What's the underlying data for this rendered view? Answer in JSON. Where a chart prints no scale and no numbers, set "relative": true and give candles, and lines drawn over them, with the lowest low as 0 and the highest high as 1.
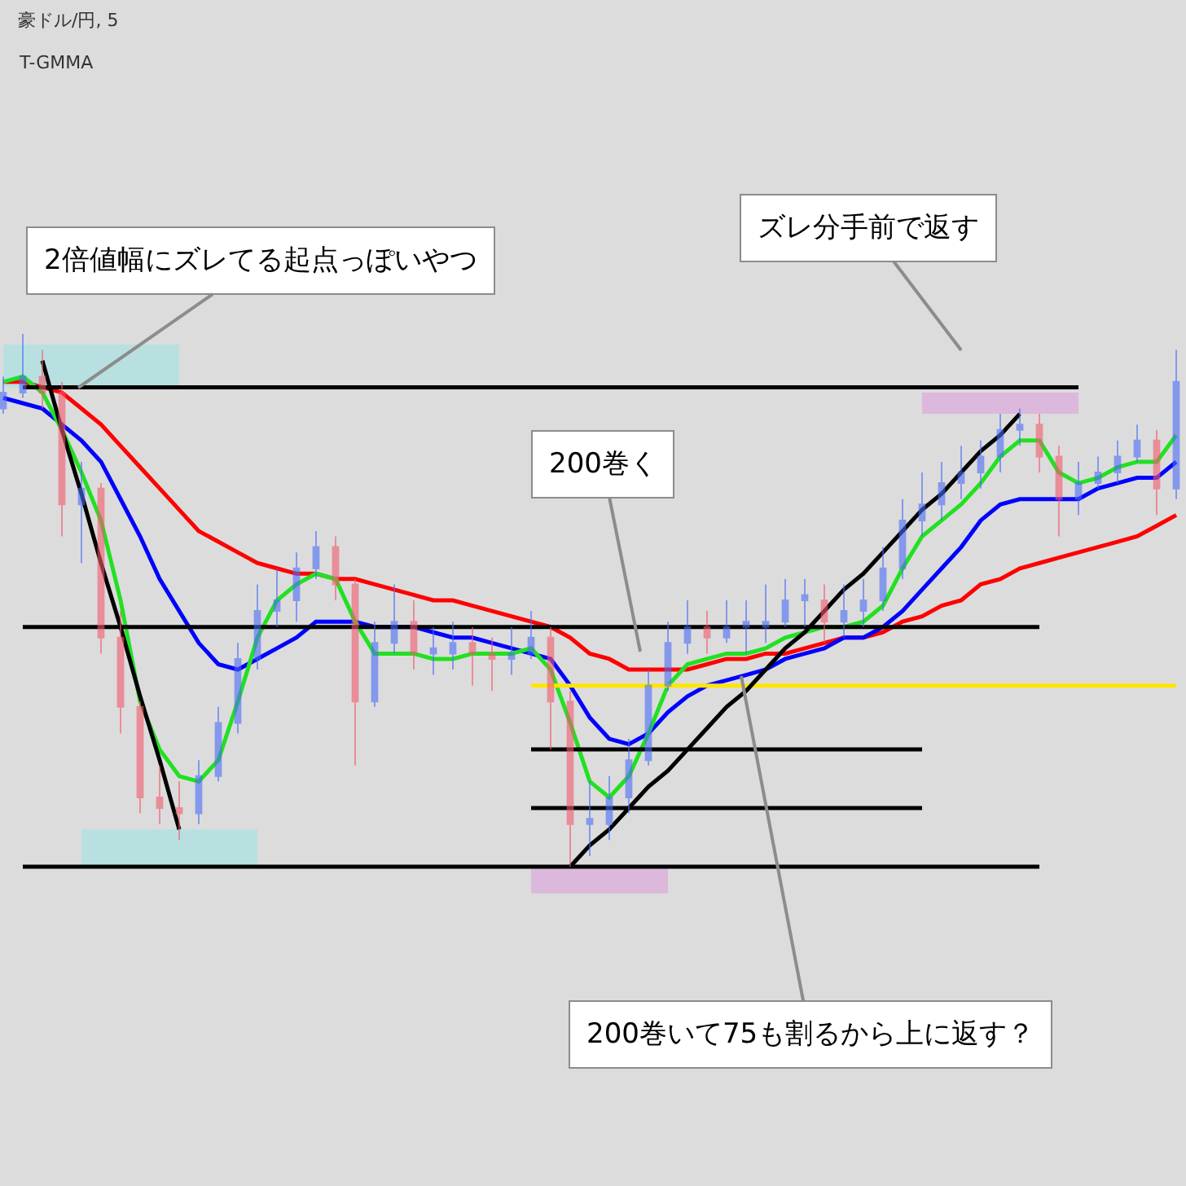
{
  "chart_data": {
    "type": "candlestick",
    "title": "豪ドル/円, 5",
    "subtitle": "T-GMMA",
    "relative": true,
    "categories": [
      null,
      null,
      null,
      null,
      null,
      null,
      null,
      null,
      null,
      null,
      null,
      null,
      null,
      null,
      null,
      null,
      null,
      null,
      null,
      null,
      null,
      null,
      null,
      null,
      null,
      null,
      null,
      null,
      null,
      null,
      null,
      null,
      null,
      null,
      null,
      null,
      null,
      null,
      null,
      null,
      null,
      null,
      null,
      null,
      null,
      null,
      null,
      null,
      null,
      null,
      null,
      null,
      null,
      null,
      null,
      null,
      null,
      null,
      null,
      null,
      null
    ],
    "ohlc": [
      [
        0.86,
        0.92,
        0.85,
        0.89
      ],
      [
        0.89,
        1.0,
        0.88,
        0.92
      ],
      [
        0.92,
        0.97,
        0.86,
        0.89
      ],
      [
        0.89,
        0.91,
        0.62,
        0.68
      ],
      [
        0.68,
        0.76,
        0.57,
        0.71
      ],
      [
        0.71,
        0.72,
        0.4,
        0.43
      ],
      [
        0.43,
        0.48,
        0.25,
        0.3
      ],
      [
        0.3,
        0.31,
        0.1,
        0.13
      ],
      [
        0.13,
        0.19,
        0.08,
        0.11
      ],
      [
        0.11,
        0.16,
        0.05,
        0.1
      ],
      [
        0.1,
        0.2,
        0.08,
        0.17
      ],
      [
        0.17,
        0.3,
        0.16,
        0.27
      ],
      [
        0.27,
        0.42,
        0.25,
        0.39
      ],
      [
        0.39,
        0.53,
        0.37,
        0.48
      ],
      [
        0.48,
        0.56,
        0.45,
        0.5
      ],
      [
        0.5,
        0.59,
        0.46,
        0.56
      ],
      [
        0.56,
        0.63,
        0.54,
        0.6
      ],
      [
        0.6,
        0.62,
        0.5,
        0.53
      ],
      [
        0.53,
        0.54,
        0.19,
        0.31
      ],
      [
        0.31,
        0.46,
        0.3,
        0.42
      ],
      [
        0.42,
        0.53,
        0.4,
        0.46
      ],
      [
        0.46,
        0.5,
        0.37,
        0.4
      ],
      [
        0.4,
        0.45,
        0.36,
        0.41
      ],
      [
        0.4,
        0.46,
        0.37,
        0.42
      ],
      [
        0.42,
        0.45,
        0.34,
        0.4
      ],
      [
        0.4,
        0.43,
        0.33,
        0.39
      ],
      [
        0.39,
        0.45,
        0.36,
        0.4
      ],
      [
        0.4,
        0.48,
        0.39,
        0.43
      ],
      [
        0.43,
        0.45,
        0.22,
        0.31
      ],
      [
        0.31,
        0.33,
        0.0,
        0.08
      ],
      [
        0.08,
        0.16,
        0.02,
        0.09
      ],
      [
        0.08,
        0.17,
        0.05,
        0.13
      ],
      [
        0.13,
        0.24,
        0.1,
        0.2
      ],
      [
        0.2,
        0.37,
        0.19,
        0.34
      ],
      [
        0.34,
        0.46,
        0.33,
        0.42
      ],
      [
        0.42,
        0.5,
        0.4,
        0.45
      ],
      [
        0.45,
        0.48,
        0.4,
        0.43
      ],
      [
        0.43,
        0.5,
        0.42,
        0.45
      ],
      [
        0.45,
        0.5,
        0.4,
        0.46
      ],
      [
        0.45,
        0.53,
        0.42,
        0.46
      ],
      [
        0.46,
        0.54,
        0.45,
        0.5
      ],
      [
        0.5,
        0.54,
        0.45,
        0.51
      ],
      [
        0.5,
        0.53,
        0.42,
        0.46
      ],
      [
        0.46,
        0.53,
        0.43,
        0.48
      ],
      [
        0.48,
        0.54,
        0.45,
        0.5
      ],
      [
        0.5,
        0.6,
        0.48,
        0.56
      ],
      [
        0.56,
        0.69,
        0.54,
        0.65
      ],
      [
        0.65,
        0.74,
        0.62,
        0.68
      ],
      [
        0.68,
        0.76,
        0.65,
        0.72
      ],
      [
        0.72,
        0.79,
        0.69,
        0.74
      ],
      [
        0.74,
        0.8,
        0.71,
        0.77
      ],
      [
        0.77,
        0.85,
        0.74,
        0.82
      ],
      [
        0.82,
        0.86,
        0.79,
        0.83
      ],
      [
        0.83,
        0.85,
        0.74,
        0.77
      ],
      [
        0.77,
        0.79,
        0.62,
        0.69
      ],
      [
        0.69,
        0.76,
        0.66,
        0.72
      ],
      [
        0.72,
        0.77,
        0.71,
        0.74
      ],
      [
        0.74,
        0.8,
        0.72,
        0.77
      ],
      [
        0.77,
        0.83,
        0.76,
        0.8
      ],
      [
        0.8,
        0.82,
        0.66,
        0.71
      ],
      [
        0.71,
        0.97,
        0.69,
        0.91
      ]
    ],
    "colors": [
      "#4a6cf7",
      "#4a6cf7",
      "#f25a6e",
      "#f25a6e",
      "#4a6cf7",
      "#f25a6e",
      "#f25a6e",
      "#f25a6e",
      "#f25a6e",
      "#f25a6e",
      "#4a6cf7",
      "#4a6cf7",
      "#4a6cf7",
      "#4a6cf7",
      "#4a6cf7",
      "#4a6cf7",
      "#4a6cf7",
      "#f25a6e",
      "#f25a6e",
      "#4a6cf7",
      "#4a6cf7",
      "#f25a6e",
      "#4a6cf7",
      "#4a6cf7",
      "#f25a6e",
      "#f25a6e",
      "#4a6cf7",
      "#4a6cf7",
      "#f25a6e",
      "#f25a6e",
      "#4a6cf7",
      "#4a6cf7",
      "#4a6cf7",
      "#4a6cf7",
      "#4a6cf7",
      "#4a6cf7",
      "#f25a6e",
      "#4a6cf7",
      "#4a6cf7",
      "#4a6cf7",
      "#4a6cf7",
      "#4a6cf7",
      "#f25a6e",
      "#4a6cf7",
      "#4a6cf7",
      "#4a6cf7",
      "#4a6cf7",
      "#4a6cf7",
      "#4a6cf7",
      "#4a6cf7",
      "#4a6cf7",
      "#4a6cf7",
      "#4a6cf7",
      "#f25a6e",
      "#f25a6e",
      "#4a6cf7",
      "#4a6cf7",
      "#4a6cf7",
      "#4a6cf7",
      "#f25a6e",
      "#4a6cf7"
    ],
    "series": [
      {
        "type": "area",
        "color": "#b9e0e0",
        "values": [
          null,
          null,
          null,
          null,
          null,
          null,
          null,
          null,
          null,
          null,
          null,
          null,
          null,
          null,
          null,
          null,
          null,
          null,
          null,
          null,
          null,
          null,
          null,
          null,
          null,
          null,
          null,
          null,
          null,
          null,
          null,
          null,
          null,
          null,
          null,
          null,
          null,
          null,
          null,
          null,
          null,
          null,
          null,
          null,
          null,
          null,
          null,
          null,
          null,
          null,
          null,
          null,
          null,
          null,
          null,
          null,
          null,
          null,
          null,
          null,
          null
        ],
        "lower": [
          0.9,
          0.9,
          0.9,
          0.9,
          0.9,
          0.9,
          0.9,
          0.9,
          0.9,
          0.9,
          null,
          null,
          null,
          null,
          null,
          null,
          null,
          null,
          null,
          null,
          null,
          null,
          null,
          null,
          null,
          null,
          null,
          null,
          null,
          null,
          null,
          null,
          null,
          null,
          null,
          null,
          null,
          null,
          null,
          null,
          null,
          null,
          null,
          null,
          null,
          null,
          null,
          null,
          null,
          null,
          null,
          null,
          null,
          null,
          null,
          null,
          null,
          null,
          null,
          null,
          null
        ],
        "upper": [
          0.98,
          0.98,
          0.98,
          0.98,
          0.98,
          0.98,
          0.98,
          0.98,
          0.98,
          0.98,
          null,
          null,
          null,
          null,
          null,
          null,
          null,
          null,
          null,
          null,
          null,
          null,
          null,
          null,
          null,
          null,
          null,
          null,
          null,
          null,
          null,
          null,
          null,
          null,
          null,
          null,
          null,
          null,
          null,
          null,
          null,
          null,
          null,
          null,
          null,
          null,
          null,
          null,
          null,
          null,
          null,
          null,
          null,
          null,
          null,
          null,
          null,
          null,
          null,
          null,
          null
        ]
      },
      {
        "type": "area",
        "color": "#b9e0e0",
        "values": [
          null,
          null,
          null,
          null,
          null,
          null,
          null,
          null,
          null,
          null,
          null,
          null,
          null,
          null,
          null,
          null,
          null,
          null,
          null,
          null,
          null,
          null,
          null,
          null,
          null,
          null,
          null,
          null,
          null,
          null,
          null,
          null,
          null,
          null,
          null,
          null,
          null,
          null,
          null,
          null,
          null,
          null,
          null,
          null,
          null,
          null,
          null,
          null,
          null,
          null,
          null,
          null,
          null,
          null,
          null,
          null,
          null,
          null,
          null,
          null,
          null
        ],
        "lower": [
          null,
          null,
          null,
          null,
          0.0,
          0.0,
          0.0,
          0.0,
          0.0,
          0.0,
          0.0,
          0.0,
          0.0,
          0.0,
          null,
          null,
          null,
          null,
          null,
          null,
          null,
          null,
          null,
          null,
          null,
          null,
          null,
          null,
          null,
          null,
          null,
          null,
          null,
          null,
          null,
          null,
          null,
          null,
          null,
          null,
          null,
          null,
          null,
          null,
          null,
          null,
          null,
          null,
          null,
          null,
          null,
          null,
          null,
          null,
          null,
          null,
          null,
          null,
          null,
          null,
          null
        ],
        "upper": [
          null,
          null,
          null,
          null,
          0.07,
          0.07,
          0.07,
          0.07,
          0.07,
          0.07,
          0.07,
          0.07,
          0.07,
          0.07,
          null,
          null,
          null,
          null,
          null,
          null,
          null,
          null,
          null,
          null,
          null,
          null,
          null,
          null,
          null,
          null,
          null,
          null,
          null,
          null,
          null,
          null,
          null,
          null,
          null,
          null,
          null,
          null,
          null,
          null,
          null,
          null,
          null,
          null,
          null,
          null,
          null,
          null,
          null,
          null,
          null,
          null,
          null,
          null,
          null,
          null,
          null
        ]
      },
      {
        "type": "area",
        "color": "#dcb8dc",
        "values": [
          null,
          null,
          null,
          null,
          null,
          null,
          null,
          null,
          null,
          null,
          null,
          null,
          null,
          null,
          null,
          null,
          null,
          null,
          null,
          null,
          null,
          null,
          null,
          null,
          null,
          null,
          null,
          null,
          null,
          null,
          null,
          null,
          null,
          null,
          null,
          null,
          null,
          null,
          null,
          null,
          null,
          null,
          null,
          null,
          null,
          null,
          null,
          null,
          null,
          null,
          null,
          null,
          null,
          null,
          null,
          null,
          null,
          null,
          null,
          null,
          null
        ],
        "lower": [
          null,
          null,
          null,
          null,
          null,
          null,
          null,
          null,
          null,
          null,
          null,
          null,
          null,
          null,
          null,
          null,
          null,
          null,
          null,
          null,
          null,
          null,
          null,
          null,
          null,
          null,
          null,
          null,
          null,
          null,
          null,
          null,
          null,
          null,
          null,
          null,
          null,
          null,
          null,
          null,
          null,
          null,
          null,
          null,
          null,
          null,
          null,
          0.85,
          0.85,
          0.85,
          0.85,
          0.85,
          0.85,
          0.85,
          0.85,
          0.85,
          null,
          null,
          null,
          null,
          null
        ],
        "upper": [
          null,
          null,
          null,
          null,
          null,
          null,
          null,
          null,
          null,
          null,
          null,
          null,
          null,
          null,
          null,
          null,
          null,
          null,
          null,
          null,
          null,
          null,
          null,
          null,
          null,
          null,
          null,
          null,
          null,
          null,
          null,
          null,
          null,
          null,
          null,
          null,
          null,
          null,
          null,
          null,
          null,
          null,
          null,
          null,
          null,
          null,
          null,
          0.89,
          0.89,
          0.89,
          0.89,
          0.89,
          0.89,
          0.89,
          0.89,
          0.89,
          null,
          null,
          null,
          null,
          null
        ]
      },
      {
        "type": "area",
        "color": "#dcb8dc",
        "values": [
          null,
          null,
          null,
          null,
          null,
          null,
          null,
          null,
          null,
          null,
          null,
          null,
          null,
          null,
          null,
          null,
          null,
          null,
          null,
          null,
          null,
          null,
          null,
          null,
          null,
          null,
          null,
          null,
          null,
          null,
          null,
          null,
          null,
          null,
          null,
          null,
          null,
          null,
          null,
          null,
          null,
          null,
          null,
          null,
          null,
          null,
          null,
          null,
          null,
          null,
          null,
          null,
          null,
          null,
          null,
          null,
          null,
          null,
          null,
          null,
          null
        ],
        "lower": [
          null,
          null,
          null,
          null,
          null,
          null,
          null,
          null,
          null,
          null,
          null,
          null,
          null,
          null,
          null,
          null,
          null,
          null,
          null,
          null,
          null,
          null,
          null,
          null,
          null,
          null,
          null,
          -0.05,
          -0.05,
          -0.05,
          -0.05,
          -0.05,
          -0.05,
          -0.05,
          -0.05,
          null,
          null,
          null,
          null,
          null,
          null,
          null,
          null,
          null,
          null,
          null,
          null,
          null,
          null,
          null,
          null,
          null,
          null,
          null,
          null,
          null,
          null,
          null,
          null,
          null,
          null
        ],
        "upper": [
          null,
          null,
          null,
          null,
          null,
          null,
          null,
          null,
          null,
          null,
          null,
          null,
          null,
          null,
          null,
          null,
          null,
          null,
          null,
          null,
          null,
          null,
          null,
          null,
          null,
          null,
          null,
          0.0,
          0.0,
          0.0,
          0.0,
          0.0,
          0.0,
          0.0,
          0.0,
          null,
          null,
          null,
          null,
          null,
          null,
          null,
          null,
          null,
          null,
          null,
          null,
          null,
          null,
          null,
          null,
          null,
          null,
          null,
          null,
          null,
          null,
          null,
          null,
          null,
          null
        ]
      },
      {
        "type": "line",
        "color": "#ff0000",
        "values": [
          0.91,
          0.91,
          0.9,
          0.89,
          0.86,
          0.83,
          0.79,
          0.75,
          0.71,
          0.67,
          0.63,
          0.61,
          0.59,
          0.57,
          0.56,
          0.55,
          0.55,
          0.54,
          0.54,
          0.53,
          0.52,
          0.51,
          0.5,
          0.5,
          0.49,
          0.48,
          0.47,
          0.46,
          0.45,
          0.43,
          0.4,
          0.39,
          0.37,
          0.37,
          0.37,
          0.37,
          0.38,
          0.39,
          0.39,
          0.4,
          0.4,
          0.41,
          0.42,
          0.43,
          0.43,
          0.44,
          0.46,
          0.47,
          0.49,
          0.5,
          0.53,
          0.54,
          0.56,
          0.57,
          0.58,
          0.59,
          0.6,
          0.61,
          0.62,
          0.64,
          0.66
        ]
      },
      {
        "type": "line",
        "color": "#0000ff",
        "values": [
          0.88,
          0.87,
          0.86,
          0.83,
          0.8,
          0.76,
          0.69,
          0.62,
          0.54,
          0.48,
          0.42,
          0.38,
          0.37,
          0.39,
          0.41,
          0.43,
          0.46,
          0.46,
          0.46,
          0.45,
          0.45,
          0.45,
          0.44,
          0.43,
          0.43,
          0.42,
          0.41,
          0.4,
          0.39,
          0.34,
          0.28,
          0.24,
          0.23,
          0.25,
          0.29,
          0.32,
          0.34,
          0.35,
          0.36,
          0.37,
          0.39,
          0.4,
          0.41,
          0.43,
          0.43,
          0.45,
          0.48,
          0.52,
          0.56,
          0.6,
          0.65,
          0.68,
          0.69,
          0.69,
          0.69,
          0.69,
          0.71,
          0.72,
          0.73,
          0.73,
          0.76
        ]
      },
      {
        "type": "line",
        "color": "#22e022",
        "values": [
          0.91,
          0.92,
          0.89,
          0.82,
          0.74,
          0.65,
          0.5,
          0.31,
          0.22,
          0.17,
          0.16,
          0.2,
          0.31,
          0.43,
          0.5,
          0.53,
          0.55,
          0.54,
          0.46,
          0.4,
          0.4,
          0.4,
          0.39,
          0.39,
          0.4,
          0.4,
          0.4,
          0.41,
          0.37,
          0.27,
          0.16,
          0.13,
          0.17,
          0.25,
          0.34,
          0.38,
          0.39,
          0.4,
          0.4,
          0.41,
          0.43,
          0.44,
          0.45,
          0.45,
          0.46,
          0.49,
          0.56,
          0.62,
          0.65,
          0.68,
          0.72,
          0.77,
          0.8,
          0.8,
          0.74,
          0.72,
          0.73,
          0.75,
          0.76,
          0.76,
          0.81
        ]
      },
      {
        "type": "line",
        "color": "#000000",
        "values": [
          null,
          0.9,
          0.9,
          0.9,
          0.9,
          0.9,
          0.9,
          0.9,
          0.9,
          0.9,
          0.9,
          0.9,
          0.9,
          0.9,
          0.9,
          0.9,
          0.9,
          0.9,
          0.9,
          0.9,
          0.9,
          0.9,
          0.9,
          0.9,
          0.9,
          0.9,
          0.9,
          0.9,
          0.9,
          0.9,
          0.9,
          0.9,
          0.9,
          0.9,
          0.9,
          0.9,
          0.9,
          0.9,
          0.9,
          0.9,
          0.9,
          0.9,
          0.9,
          0.9,
          0.9,
          0.9,
          0.9,
          0.9,
          0.9,
          0.9,
          0.9,
          0.9,
          0.9,
          0.9,
          0.9,
          0.9,
          null,
          null,
          null,
          null,
          null
        ]
      },
      {
        "type": "line",
        "color": "#000000",
        "values": [
          null,
          0.45,
          0.45,
          0.45,
          0.45,
          0.45,
          0.45,
          0.45,
          0.45,
          0.45,
          0.45,
          0.45,
          0.45,
          0.45,
          0.45,
          0.45,
          0.45,
          0.45,
          0.45,
          0.45,
          0.45,
          0.45,
          0.45,
          0.45,
          0.45,
          0.45,
          0.45,
          0.45,
          0.45,
          0.45,
          0.45,
          0.45,
          0.45,
          0.45,
          0.45,
          0.45,
          0.45,
          0.45,
          0.45,
          0.45,
          0.45,
          0.45,
          0.45,
          0.45,
          0.45,
          0.45,
          0.45,
          0.45,
          0.45,
          0.45,
          0.45,
          0.45,
          0.45,
          0.45,
          null,
          null,
          null,
          null,
          null,
          null,
          null
        ]
      },
      {
        "type": "line",
        "color": "#000000",
        "values": [
          null,
          0.0,
          0.0,
          0.0,
          0.0,
          0.0,
          0.0,
          0.0,
          0.0,
          0.0,
          0.0,
          0.0,
          0.0,
          0.0,
          0.0,
          0.0,
          0.0,
          0.0,
          0.0,
          0.0,
          0.0,
          0.0,
          0.0,
          0.0,
          0.0,
          0.0,
          0.0,
          0.0,
          0.0,
          0.0,
          0.0,
          0.0,
          0.0,
          0.0,
          0.0,
          0.0,
          0.0,
          0.0,
          0.0,
          0.0,
          0.0,
          0.0,
          0.0,
          0.0,
          0.0,
          0.0,
          0.0,
          0.0,
          0.0,
          0.0,
          0.0,
          0.0,
          0.0,
          0.0,
          null,
          null,
          null,
          null,
          null,
          null,
          null
        ]
      },
      {
        "type": "line",
        "color": "#000000",
        "values": [
          null,
          null,
          null,
          null,
          null,
          null,
          null,
          null,
          null,
          null,
          null,
          null,
          null,
          null,
          null,
          null,
          null,
          null,
          null,
          null,
          null,
          null,
          null,
          null,
          null,
          null,
          null,
          0.22,
          0.22,
          0.22,
          0.22,
          0.22,
          0.22,
          0.22,
          0.22,
          0.22,
          0.22,
          0.22,
          0.22,
          0.22,
          0.22,
          0.22,
          0.22,
          0.22,
          0.22,
          0.22,
          0.22,
          0.22,
          null,
          null,
          null,
          null,
          null,
          null,
          null,
          null,
          null,
          null,
          null,
          null,
          null
        ]
      },
      {
        "type": "line",
        "color": "#000000",
        "values": [
          null,
          null,
          null,
          null,
          null,
          null,
          null,
          null,
          null,
          null,
          null,
          null,
          null,
          null,
          null,
          null,
          null,
          null,
          null,
          null,
          null,
          null,
          null,
          null,
          null,
          null,
          null,
          0.11,
          0.11,
          0.11,
          0.11,
          0.11,
          0.11,
          0.11,
          0.11,
          0.11,
          0.11,
          0.11,
          0.11,
          0.11,
          0.11,
          0.11,
          0.11,
          0.11,
          0.11,
          0.11,
          0.11,
          0.11,
          null,
          null,
          null,
          null,
          null,
          null,
          null,
          null,
          null,
          null,
          null,
          null,
          null
        ]
      },
      {
        "type": "line",
        "color": "#ffe600",
        "values": [
          null,
          null,
          null,
          null,
          null,
          null,
          null,
          null,
          null,
          null,
          null,
          null,
          null,
          null,
          null,
          null,
          null,
          null,
          null,
          null,
          null,
          null,
          null,
          null,
          null,
          null,
          null,
          0.34,
          0.34,
          0.34,
          0.34,
          0.34,
          0.34,
          0.34,
          0.34,
          0.34,
          0.34,
          0.34,
          0.34,
          0.34,
          0.34,
          0.34,
          0.34,
          0.34,
          0.34,
          0.34,
          0.34,
          0.34,
          0.34,
          0.34,
          0.34,
          0.34,
          0.34,
          0.34,
          0.34,
          0.34,
          0.34,
          0.34,
          0.34,
          0.34,
          0.34
        ]
      },
      {
        "type": "line",
        "color": "#000000",
        "values": [
          null,
          null,
          0.95,
          0.82,
          0.7,
          0.57,
          0.45,
          0.32,
          0.2,
          0.07,
          null,
          null,
          null,
          null,
          null,
          null,
          null,
          null,
          null,
          null,
          null,
          null,
          null,
          null,
          null,
          null,
          null,
          null,
          null,
          null,
          null,
          null,
          null,
          null,
          null,
          null,
          null,
          null,
          null,
          null,
          null,
          null,
          null,
          null,
          null,
          null,
          null,
          null,
          null,
          null,
          null,
          null,
          null,
          null,
          null,
          null,
          null,
          null,
          null,
          null,
          null
        ]
      },
      {
        "type": "line",
        "color": "#000000",
        "values": [
          null,
          null,
          null,
          null,
          null,
          null,
          null,
          null,
          null,
          null,
          null,
          null,
          null,
          null,
          null,
          null,
          null,
          null,
          null,
          null,
          null,
          null,
          null,
          null,
          null,
          null,
          null,
          null,
          null,
          0.0,
          0.04,
          0.07,
          0.11,
          0.15,
          0.18,
          0.22,
          0.26,
          0.3,
          0.33,
          0.37,
          0.41,
          0.44,
          0.48,
          0.52,
          0.55,
          0.59,
          0.63,
          0.67,
          0.7,
          0.74,
          0.78,
          0.81,
          0.85,
          null,
          null,
          null,
          null,
          null,
          null,
          null,
          null
        ]
      }
    ],
    "annotations": [
      "2倍値幅にズレてる起点っぽいやつ",
      "ズレ分手前で返す",
      "200巻く",
      "200巻いて75も割るから上に返す？"
    ]
  }
}
